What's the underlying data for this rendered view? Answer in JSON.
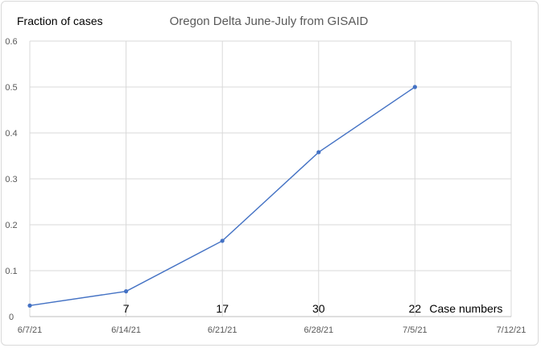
{
  "chart_data": {
    "type": "line",
    "title": "Oregon Delta June-July from GISAID",
    "ylabel": "Fraction of cases",
    "xlabel": "",
    "x_tick_labels": [
      "6/7/21",
      "6/14/21",
      "6/21/21",
      "6/28/21",
      "7/5/21",
      "7/12/21"
    ],
    "y_tick_labels": [
      "0",
      "0.1",
      "0.2",
      "0.3",
      "0.4",
      "0.5",
      "0.6"
    ],
    "ylim": [
      0,
      0.6
    ],
    "xlim": [
      "6/7/21",
      "7/12/21"
    ],
    "grid": "vertical and horizontal",
    "legend": "none",
    "series": [
      {
        "color": "#4472C4",
        "points": [
          {
            "x": "6/7/21",
            "y": 0.024
          },
          {
            "x": "6/14/21",
            "y": 0.055
          },
          {
            "x": "6/21/21",
            "y": 0.165
          },
          {
            "x": "6/28/21",
            "y": 0.358
          },
          {
            "x": "7/5/21",
            "y": 0.5
          }
        ]
      }
    ],
    "annotations": {
      "case_counts": [
        {
          "x": "6/14/21",
          "label": "7"
        },
        {
          "x": "6/21/21",
          "label": "17"
        },
        {
          "x": "6/28/21",
          "label": "30"
        },
        {
          "x": "7/5/21",
          "label": "22"
        }
      ],
      "case_counts_label": "Case numbers"
    }
  }
}
